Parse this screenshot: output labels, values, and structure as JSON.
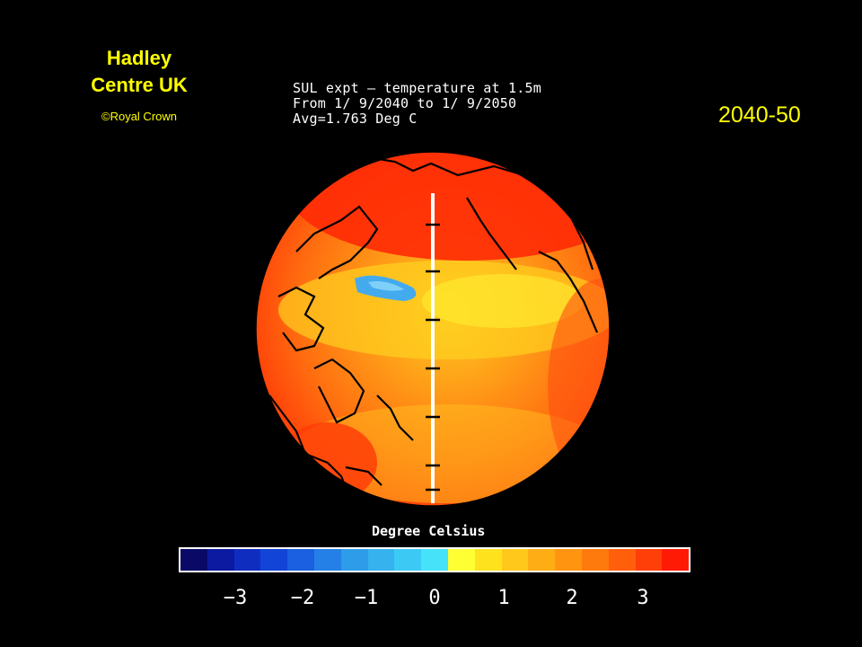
{
  "credit": {
    "line1": "Hadley",
    "line2": "Centre UK",
    "copyright": "©Royal Crown"
  },
  "period": "2040-50",
  "map_title": {
    "line1": "SUL expt — temperature at 1.5m",
    "line2": "From 1/ 9/2040 to 1/ 9/2050",
    "line3": "Avg=1.763 Deg C"
  },
  "legend": {
    "unit_label": "Degree Celsius",
    "ticks": [
      "−3",
      "−2",
      "−1",
      "0",
      "1",
      "2",
      "3"
    ],
    "colors": [
      "#0a0a66",
      "#0b1aa0",
      "#0f2ec0",
      "#1244d8",
      "#1a60e0",
      "#2480e6",
      "#2e9ce8",
      "#36b2ee",
      "#3ccaf4",
      "#46e2fa",
      "#ffff33",
      "#ffe21e",
      "#ffc81a",
      "#ffad14",
      "#ff9410",
      "#ff7a0c",
      "#ff5e0a",
      "#ff3e08",
      "#ff1a06"
    ]
  },
  "colors": {
    "accent_text": "#ffff00",
    "background": "#000000"
  }
}
